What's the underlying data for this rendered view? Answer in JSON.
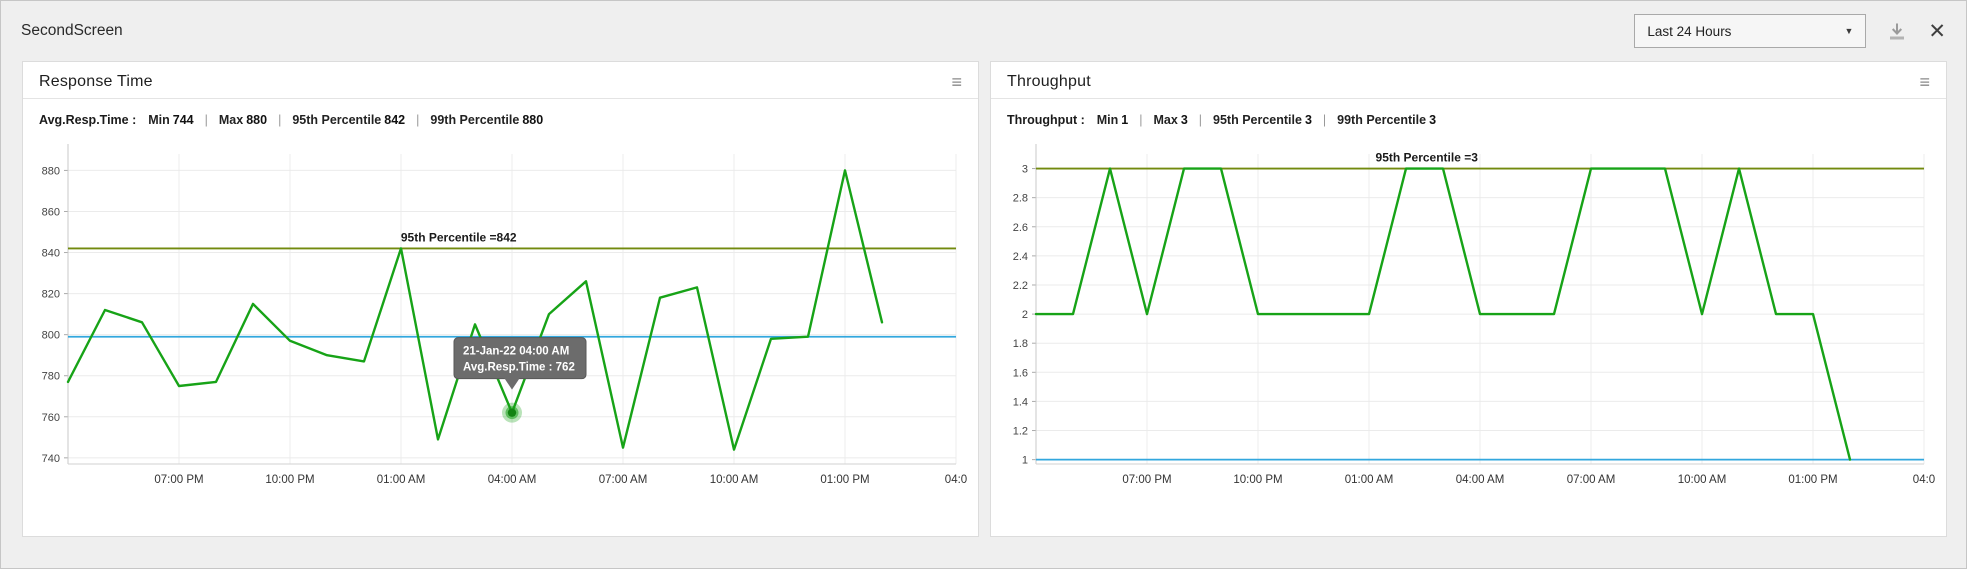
{
  "ui": {
    "stat_separator": "|",
    "menu_icon_glyph": "≡",
    "close_icon_glyph": "✕",
    "caret_glyph": "▼"
  },
  "header": {
    "title": "SecondScreen",
    "time_range_value": "Last 24 Hours"
  },
  "charts": [
    {
      "title": "Response Time",
      "stats_label": "Avg.Resp.Time :",
      "stats": [
        {
          "label": "Min",
          "value": "744"
        },
        {
          "label": "Max",
          "value": "880"
        },
        {
          "label": "95th Percentile",
          "value": "842"
        },
        {
          "label": "99th Percentile",
          "value": "880"
        }
      ],
      "chart_data": {
        "type": "line",
        "x_tick_labels": [
          "07:00 PM",
          "10:00 PM",
          "01:00 AM",
          "04:00 AM",
          "07:00 AM",
          "10:00 AM",
          "01:00 PM",
          "04:0"
        ],
        "x_tick_first": 3,
        "x_tick_step": 3,
        "x_max": 24,
        "y_ticks": [
          740,
          760,
          780,
          800,
          820,
          840,
          860,
          880
        ],
        "y_domain": [
          737,
          888
        ],
        "values": [
          777,
          812,
          806,
          775,
          777,
          815,
          797,
          790,
          787,
          842,
          749,
          805,
          762,
          810,
          826,
          745,
          818,
          823,
          744,
          798,
          799,
          880,
          806
        ],
        "blue_line": 799,
        "percentile_line": {
          "value": 842,
          "label": "95th Percentile =842"
        },
        "tooltip": {
          "point_index": 12,
          "line1": "21-Jan-22 04:00 AM",
          "line2": "Avg.Resp.Time : 762"
        },
        "colors": {
          "series": "#17a317",
          "olive": "#728a0e",
          "blue": "#32a7de"
        }
      }
    },
    {
      "title": "Throughput",
      "stats_label": "Throughput :",
      "stats": [
        {
          "label": "Min",
          "value": "1"
        },
        {
          "label": "Max",
          "value": "3"
        },
        {
          "label": "95th Percentile",
          "value": "3"
        },
        {
          "label": "99th Percentile",
          "value": "3"
        }
      ],
      "chart_data": {
        "type": "line",
        "x_tick_labels": [
          "07:00 PM",
          "10:00 PM",
          "01:00 AM",
          "04:00 AM",
          "07:00 AM",
          "10:00 AM",
          "01:00 PM",
          "04:0"
        ],
        "x_tick_first": 3,
        "x_tick_step": 3,
        "x_max": 24,
        "y_ticks": [
          1,
          1.2,
          1.4,
          1.6,
          1.8,
          2,
          2.2,
          2.4,
          2.6,
          2.8,
          3
        ],
        "y_domain": [
          0.97,
          3.1
        ],
        "values": [
          2,
          2,
          3,
          2,
          3,
          3,
          2,
          2,
          2,
          2,
          3,
          3,
          2,
          2,
          2,
          3,
          3,
          3,
          2,
          3,
          2,
          2,
          1
        ],
        "blue_line": 1,
        "percentile_line": {
          "value": 3,
          "label": "95th Percentile =3"
        },
        "tooltip": null,
        "colors": {
          "series": "#17a317",
          "olive": "#728a0e",
          "blue": "#32a7de"
        }
      }
    }
  ]
}
